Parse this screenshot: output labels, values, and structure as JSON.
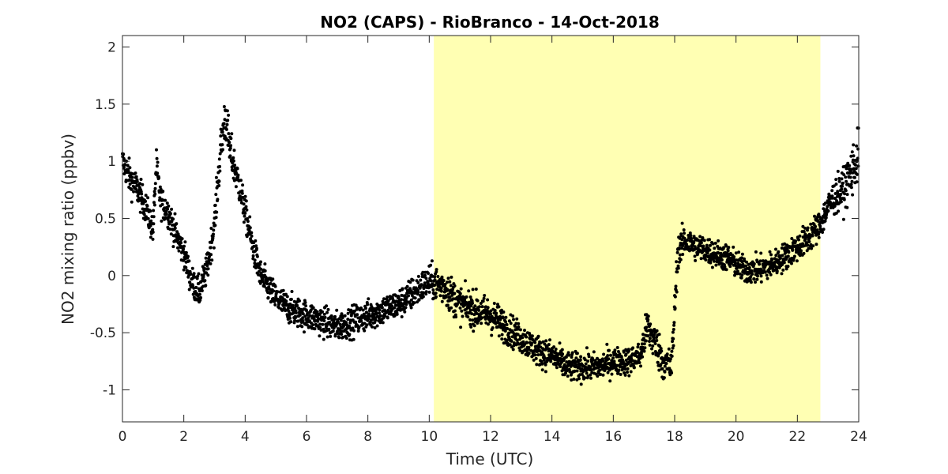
{
  "chart_data": {
    "type": "scatter",
    "title": "NO2 (CAPS) - RioBranco - 14-Oct-2018",
    "xlabel": "Time (UTC)",
    "ylabel": "NO2 mixing ratio (ppbv)",
    "xlim": [
      0,
      24
    ],
    "ylim": [
      -1.28,
      2.1
    ],
    "xticks": [
      0,
      2,
      4,
      6,
      8,
      10,
      12,
      14,
      16,
      18,
      20,
      22,
      24
    ],
    "yticks": [
      -1,
      -0.5,
      0,
      0.5,
      1,
      1.5,
      2
    ],
    "xtick_labels": [
      "0",
      "2",
      "4",
      "6",
      "8",
      "10",
      "12",
      "14",
      "16",
      "18",
      "20",
      "22",
      "24"
    ],
    "ytick_labels": [
      "-1",
      "-0.5",
      "0",
      "0.5",
      "1",
      "1.5",
      "2"
    ],
    "grid": false,
    "shaded_region": {
      "x_start": 10.15,
      "x_end": 22.75,
      "color": "#ffffb3"
    },
    "marker_color": "#000000",
    "series": [
      {
        "x": [
          0.0,
          0.25,
          0.5,
          0.75,
          1.0,
          1.1,
          1.25,
          1.5,
          1.75,
          2.0,
          2.25,
          2.5,
          2.75,
          3.0,
          3.2,
          3.35,
          3.5,
          3.75,
          4.0,
          4.25,
          4.5,
          5.0,
          5.5,
          6.0,
          6.5,
          7.0,
          7.5,
          8.0,
          8.5,
          9.0,
          9.5,
          10.0,
          10.5,
          11.0,
          11.5,
          12.0,
          12.5,
          13.0,
          13.5,
          14.0,
          14.5,
          15.0,
          15.5,
          16.0,
          16.5,
          16.9,
          17.1,
          17.4,
          17.6,
          17.9,
          18.1,
          18.3,
          18.75,
          19.25,
          19.75,
          20.25,
          20.75,
          21.25,
          21.75,
          22.25,
          22.75,
          23.0,
          23.25,
          23.5,
          23.75,
          24.0
        ],
        "y": [
          1.0,
          0.85,
          0.75,
          0.6,
          0.4,
          0.95,
          0.65,
          0.55,
          0.35,
          0.2,
          -0.05,
          -0.15,
          0.05,
          0.45,
          1.1,
          1.4,
          1.1,
          0.85,
          0.55,
          0.25,
          0.0,
          -0.2,
          -0.3,
          -0.35,
          -0.4,
          -0.45,
          -0.4,
          -0.35,
          -0.3,
          -0.25,
          -0.15,
          -0.05,
          -0.1,
          -0.25,
          -0.3,
          -0.35,
          -0.45,
          -0.55,
          -0.65,
          -0.7,
          -0.8,
          -0.8,
          -0.8,
          -0.75,
          -0.75,
          -0.7,
          -0.45,
          -0.6,
          -0.75,
          -0.8,
          0.2,
          0.3,
          0.25,
          0.2,
          0.15,
          0.05,
          0.05,
          0.1,
          0.2,
          0.3,
          0.45,
          0.6,
          0.7,
          0.75,
          0.9,
          1.05
        ],
        "spread": [
          0.12,
          0.13,
          0.13,
          0.12,
          0.12,
          0.15,
          0.12,
          0.12,
          0.12,
          0.12,
          0.12,
          0.12,
          0.12,
          0.14,
          0.17,
          0.2,
          0.17,
          0.14,
          0.13,
          0.12,
          0.12,
          0.12,
          0.12,
          0.12,
          0.12,
          0.12,
          0.12,
          0.12,
          0.12,
          0.12,
          0.13,
          0.13,
          0.15,
          0.14,
          0.14,
          0.14,
          0.13,
          0.12,
          0.12,
          0.12,
          0.12,
          0.11,
          0.11,
          0.11,
          0.11,
          0.11,
          0.16,
          0.16,
          0.14,
          0.14,
          0.14,
          0.12,
          0.11,
          0.11,
          0.11,
          0.11,
          0.11,
          0.11,
          0.11,
          0.12,
          0.12,
          0.13,
          0.14,
          0.16,
          0.2,
          0.22
        ]
      }
    ]
  }
}
